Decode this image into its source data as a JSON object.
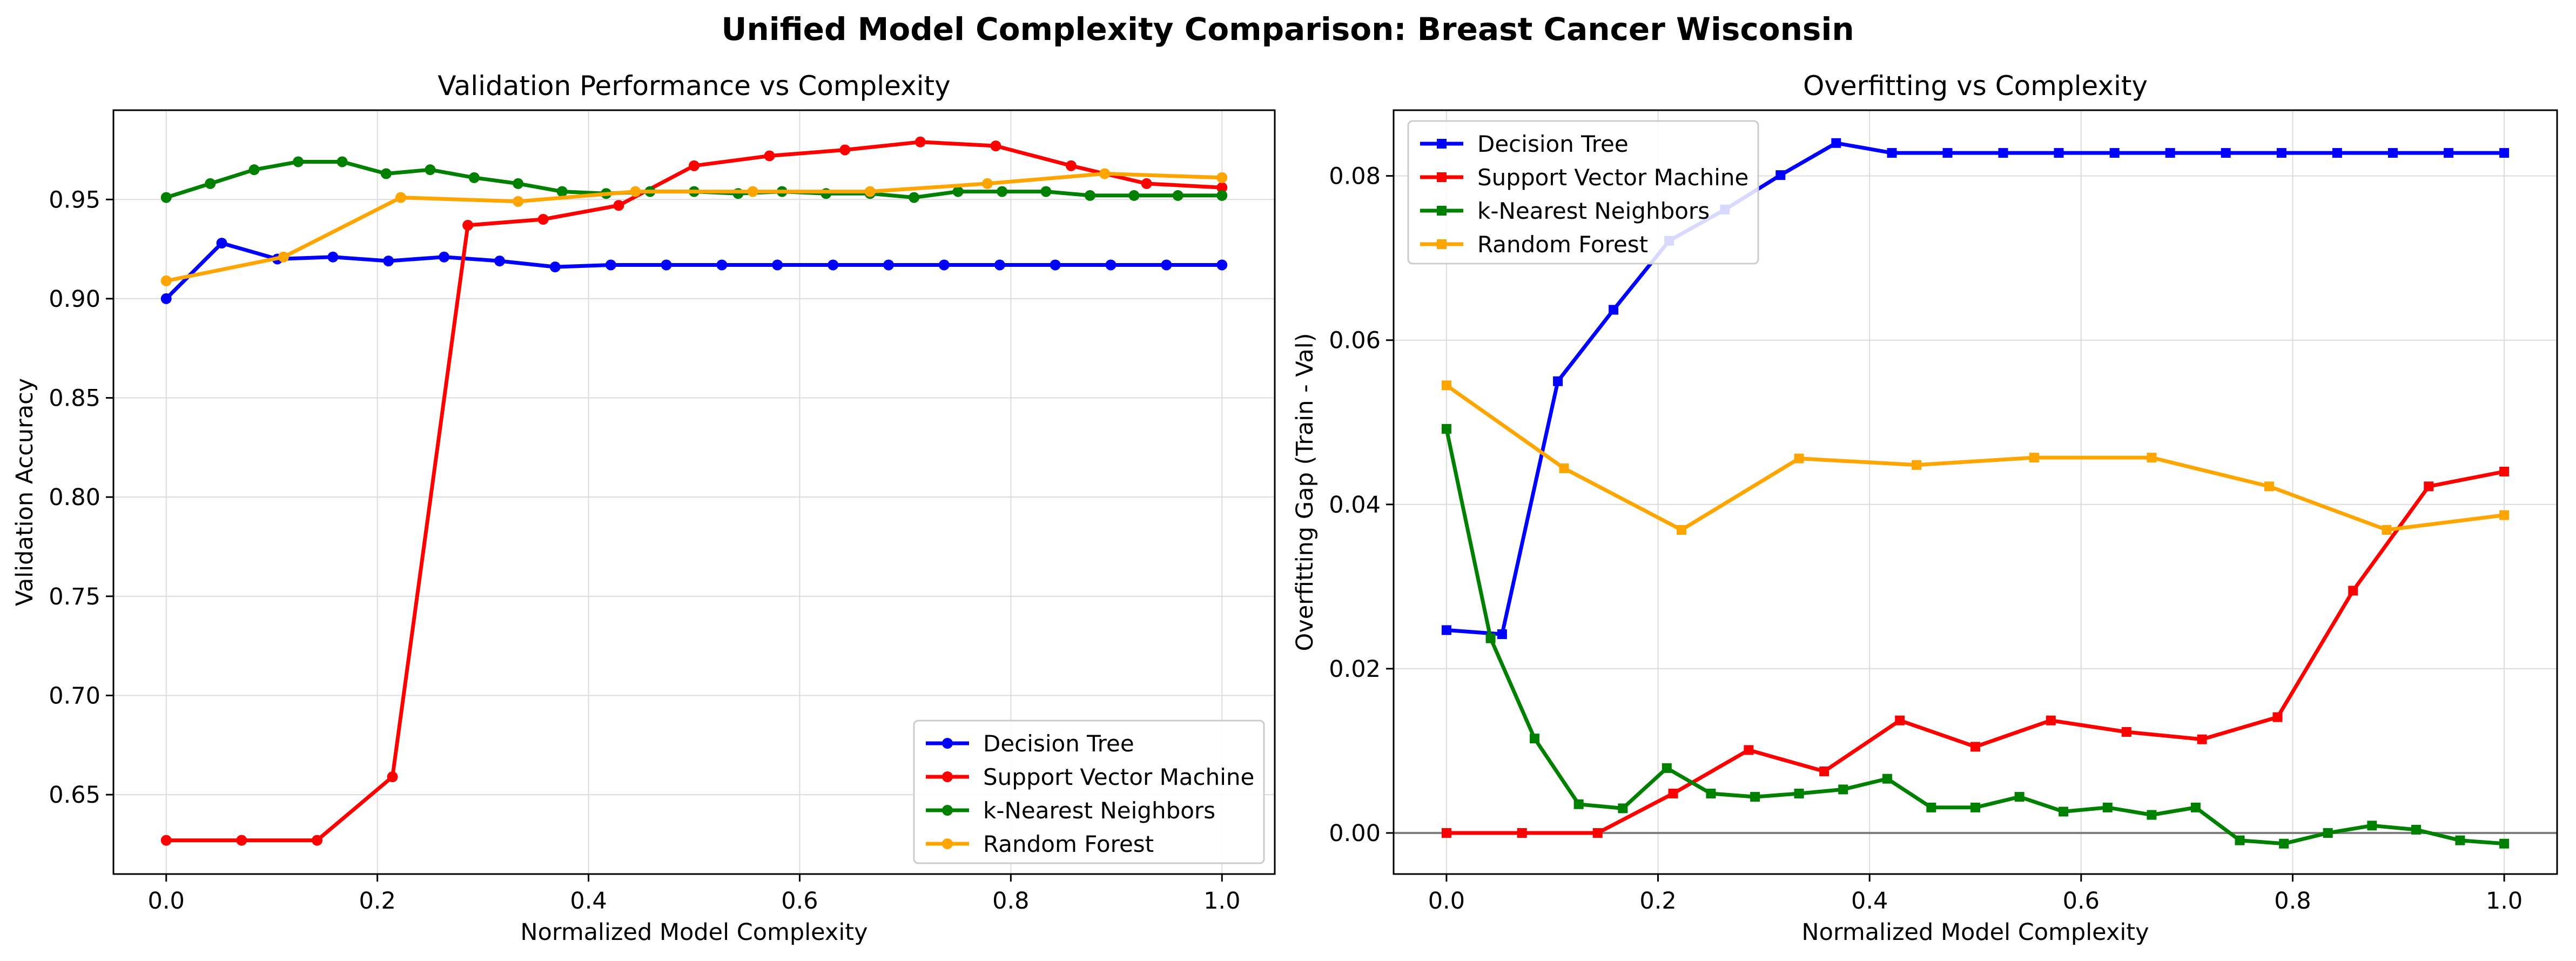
{
  "figure": {
    "title": "Unified Model Complexity Comparison: Breast Cancer Wisconsin"
  },
  "chart_data": [
    {
      "type": "line",
      "title": "Validation Performance vs Complexity",
      "xlabel": "Normalized Model Complexity",
      "ylabel": "Validation Accuracy",
      "xlim": [
        -0.05,
        1.05
      ],
      "ylim": [
        0.61,
        0.995
      ],
      "xticks": [
        0.0,
        0.2,
        0.4,
        0.6,
        0.8,
        1.0
      ],
      "xtick_labels": [
        "0.0",
        "0.2",
        "0.4",
        "0.6",
        "0.8",
        "1.0"
      ],
      "yticks": [
        0.65,
        0.7,
        0.75,
        0.8,
        0.85,
        0.9,
        0.95
      ],
      "ytick_labels": [
        "0.65",
        "0.70",
        "0.75",
        "0.80",
        "0.85",
        "0.90",
        "0.95"
      ],
      "grid": true,
      "legend": "lower-right",
      "marker": "circle",
      "series": [
        {
          "name": "Decision Tree",
          "color": "#0000ff",
          "x": [
            0.0,
            0.0526,
            0.1053,
            0.1579,
            0.2105,
            0.2632,
            0.3158,
            0.3684,
            0.4211,
            0.4737,
            0.5263,
            0.5789,
            0.6316,
            0.6842,
            0.7368,
            0.7895,
            0.8421,
            0.8947,
            0.9474,
            1.0
          ],
          "y": [
            0.9,
            0.928,
            0.92,
            0.921,
            0.919,
            0.921,
            0.919,
            0.916,
            0.917,
            0.917,
            0.917,
            0.917,
            0.917,
            0.917,
            0.917,
            0.917,
            0.917,
            0.917,
            0.917,
            0.917
          ]
        },
        {
          "name": "Support Vector Machine",
          "color": "#ff0000",
          "x": [
            0.0,
            0.0714,
            0.1429,
            0.2143,
            0.2857,
            0.3571,
            0.4286,
            0.5,
            0.5714,
            0.6429,
            0.7143,
            0.7857,
            0.8571,
            0.9286,
            1.0
          ],
          "y": [
            0.627,
            0.627,
            0.627,
            0.659,
            0.937,
            0.94,
            0.947,
            0.967,
            0.972,
            0.975,
            0.979,
            0.977,
            0.967,
            0.958,
            0.956
          ]
        },
        {
          "name": "k-Nearest Neighbors",
          "color": "#008000",
          "x": [
            0.0,
            0.0417,
            0.0833,
            0.125,
            0.1667,
            0.2083,
            0.25,
            0.2917,
            0.3333,
            0.375,
            0.4167,
            0.4583,
            0.5,
            0.5417,
            0.5833,
            0.625,
            0.6667,
            0.7083,
            0.75,
            0.7917,
            0.8333,
            0.875,
            0.9167,
            0.9583,
            1.0
          ],
          "y": [
            0.951,
            0.958,
            0.965,
            0.969,
            0.969,
            0.963,
            0.965,
            0.961,
            0.958,
            0.954,
            0.953,
            0.954,
            0.954,
            0.953,
            0.954,
            0.953,
            0.953,
            0.951,
            0.954,
            0.954,
            0.954,
            0.952,
            0.952,
            0.952,
            0.952
          ]
        },
        {
          "name": "Random Forest",
          "color": "#ffa500",
          "x": [
            0.0,
            0.1111,
            0.2222,
            0.3333,
            0.4444,
            0.5556,
            0.6667,
            0.7778,
            0.8889,
            1.0
          ],
          "y": [
            0.909,
            0.921,
            0.951,
            0.949,
            0.954,
            0.954,
            0.954,
            0.958,
            0.963,
            0.961
          ]
        }
      ]
    },
    {
      "type": "line",
      "title": "Overfitting vs Complexity",
      "xlabel": "Normalized Model Complexity",
      "ylabel": "Overfitting Gap (Train - Val)",
      "xlim": [
        -0.05,
        1.05
      ],
      "ylim": [
        -0.005,
        0.088
      ],
      "xticks": [
        0.0,
        0.2,
        0.4,
        0.6,
        0.8,
        1.0
      ],
      "xtick_labels": [
        "0.0",
        "0.2",
        "0.4",
        "0.6",
        "0.8",
        "1.0"
      ],
      "yticks": [
        0.0,
        0.02,
        0.04,
        0.06,
        0.08
      ],
      "ytick_labels": [
        "0.00",
        "0.02",
        "0.04",
        "0.06",
        "0.08"
      ],
      "grid": true,
      "zero_line": true,
      "legend": "upper-left",
      "marker": "square",
      "series": [
        {
          "name": "Decision Tree",
          "color": "#0000ff",
          "x": [
            0.0,
            0.0526,
            0.1053,
            0.1579,
            0.2105,
            0.2632,
            0.3158,
            0.3684,
            0.4211,
            0.4737,
            0.5263,
            0.5789,
            0.6316,
            0.6842,
            0.7368,
            0.7895,
            0.8421,
            0.8947,
            0.9474,
            1.0
          ],
          "y": [
            0.0247,
            0.0242,
            0.055,
            0.0637,
            0.0721,
            0.0759,
            0.0801,
            0.084,
            0.0828,
            0.0828,
            0.0828,
            0.0828,
            0.0828,
            0.0828,
            0.0828,
            0.0828,
            0.0828,
            0.0828,
            0.0828,
            0.0828
          ]
        },
        {
          "name": "Support Vector Machine",
          "color": "#ff0000",
          "x": [
            0.0,
            0.0714,
            0.1429,
            0.2143,
            0.2857,
            0.3571,
            0.4286,
            0.5,
            0.5714,
            0.6429,
            0.7143,
            0.7857,
            0.8571,
            0.9286,
            1.0
          ],
          "y": [
            0.0,
            0.0,
            0.0,
            0.0048,
            0.0101,
            0.0075,
            0.0137,
            0.0105,
            0.0137,
            0.0123,
            0.0114,
            0.0141,
            0.0295,
            0.0422,
            0.044
          ]
        },
        {
          "name": "k-Nearest Neighbors",
          "color": "#008000",
          "x": [
            0.0,
            0.0417,
            0.0833,
            0.125,
            0.1667,
            0.2083,
            0.25,
            0.2917,
            0.3333,
            0.375,
            0.4167,
            0.4583,
            0.5,
            0.5417,
            0.5833,
            0.625,
            0.6667,
            0.7083,
            0.75,
            0.7917,
            0.8333,
            0.875,
            0.9167,
            0.9583,
            1.0
          ],
          "y": [
            0.0492,
            0.0237,
            0.0115,
            0.0035,
            0.003,
            0.0079,
            0.0048,
            0.0044,
            0.0048,
            0.0053,
            0.0066,
            0.0031,
            0.0031,
            0.0044,
            0.0026,
            0.0031,
            0.0022,
            0.0031,
            -0.0009,
            -0.0013,
            0.0,
            0.0009,
            0.0004,
            -0.0009,
            -0.0013
          ]
        },
        {
          "name": "Random Forest",
          "color": "#ffa500",
          "x": [
            0.0,
            0.1111,
            0.2222,
            0.3333,
            0.4444,
            0.5556,
            0.6667,
            0.7778,
            0.8889,
            1.0
          ],
          "y": [
            0.0545,
            0.0444,
            0.0369,
            0.0456,
            0.0448,
            0.0457,
            0.0457,
            0.0422,
            0.0369,
            0.0387
          ]
        }
      ]
    }
  ]
}
